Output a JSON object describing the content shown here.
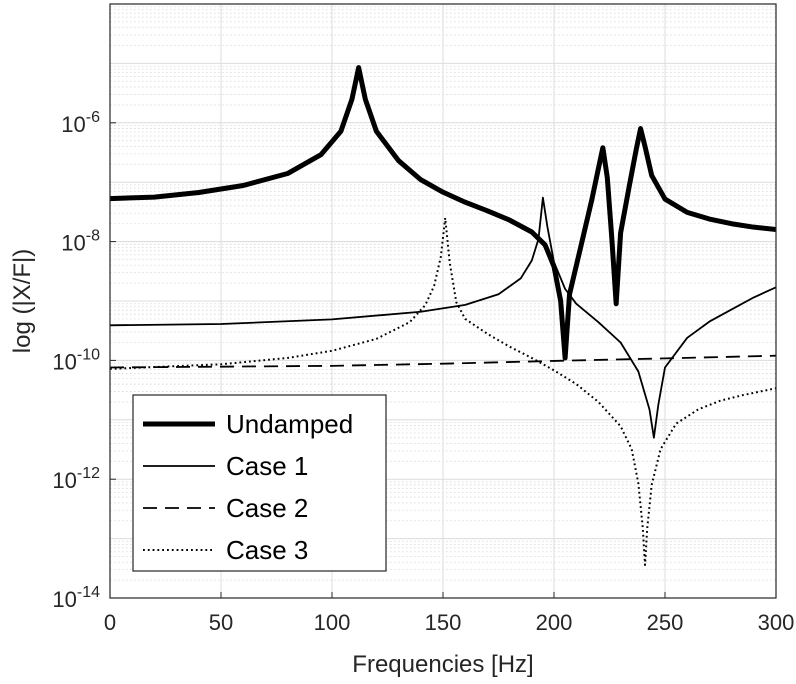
{
  "chart_data": {
    "type": "line",
    "title": "",
    "xlabel": "Frequencies [Hz]",
    "ylabel": "log (|X/F|)",
    "xlim": [
      0,
      300
    ],
    "ylim": [
      1e-14,
      0.0001
    ],
    "yscale": "log",
    "grid": true,
    "minor_grid": true,
    "legend_position": "bottom-left",
    "x_ticks": [
      0,
      50,
      100,
      150,
      200,
      250,
      300
    ],
    "y_ticks": [
      {
        "base": "10",
        "exp": "-14"
      },
      {
        "base": "10",
        "exp": "-12"
      },
      {
        "base": "10",
        "exp": "-10"
      },
      {
        "base": "10",
        "exp": "-8"
      },
      {
        "base": "10",
        "exp": "-6"
      }
    ],
    "series": [
      {
        "name": "Undamped",
        "style": "solid-thick",
        "points": [
          [
            0,
            5.3e-08
          ],
          [
            20,
            5.6e-08
          ],
          [
            40,
            6.7e-08
          ],
          [
            60,
            8.8e-08
          ],
          [
            80,
            1.4e-07
          ],
          [
            95,
            2.9e-07
          ],
          [
            104,
            7.2e-07
          ],
          [
            109,
            2.5e-06
          ],
          [
            112,
            8.5e-06
          ],
          [
            115,
            2.5e-06
          ],
          [
            120,
            7.2e-07
          ],
          [
            130,
            2.3e-07
          ],
          [
            140,
            1.1e-07
          ],
          [
            150,
            6.8e-08
          ],
          [
            160,
            4.6e-08
          ],
          [
            170,
            3.3e-08
          ],
          [
            180,
            2.3e-08
          ],
          [
            190,
            1.45e-08
          ],
          [
            196,
            8.8e-09
          ],
          [
            200,
            3.8e-09
          ],
          [
            203,
            1e-09
          ],
          [
            205,
            1.1e-10
          ],
          [
            207,
            1.3e-09
          ],
          [
            212,
            8e-09
          ],
          [
            217,
            5e-08
          ],
          [
            220,
            1.7e-07
          ],
          [
            222,
            3.8e-07
          ],
          [
            224,
            1.2e-07
          ],
          [
            226,
            1.2e-08
          ],
          [
            228,
            9e-10
          ],
          [
            230,
            1.4e-08
          ],
          [
            234,
            9e-08
          ],
          [
            237,
            3.5e-07
          ],
          [
            239,
            8e-07
          ],
          [
            241,
            4e-07
          ],
          [
            244,
            1.3e-07
          ],
          [
            250,
            5.2e-08
          ],
          [
            260,
            3.1e-08
          ],
          [
            270,
            2.4e-08
          ],
          [
            280,
            2e-08
          ],
          [
            290,
            1.75e-08
          ],
          [
            300,
            1.6e-08
          ]
        ]
      },
      {
        "name": "Case 1",
        "style": "solid-thin",
        "points": [
          [
            0,
            3.9e-10
          ],
          [
            50,
            4.1e-10
          ],
          [
            100,
            4.9e-10
          ],
          [
            140,
            6.6e-10
          ],
          [
            160,
            8.6e-10
          ],
          [
            175,
            1.3e-09
          ],
          [
            185,
            2.4e-09
          ],
          [
            190,
            4.8e-09
          ],
          [
            193,
            1.1e-08
          ],
          [
            195,
            5.5e-08
          ],
          [
            197,
            1.8e-08
          ],
          [
            200,
            4.5e-09
          ],
          [
            205,
            1.6e-09
          ],
          [
            210,
            9e-10
          ],
          [
            220,
            4.4e-10
          ],
          [
            230,
            2e-10
          ],
          [
            238,
            6.5e-11
          ],
          [
            243,
            1.5e-11
          ],
          [
            245,
            5e-12
          ],
          [
            247,
            1.8e-11
          ],
          [
            250,
            7.6e-11
          ],
          [
            260,
            2.4e-10
          ],
          [
            270,
            4.5e-10
          ],
          [
            280,
            7.2e-10
          ],
          [
            290,
            1.15e-09
          ],
          [
            300,
            1.7e-09
          ]
        ]
      },
      {
        "name": "Case 2",
        "style": "dashed",
        "points": [
          [
            0,
            7.6e-11
          ],
          [
            100,
            8.1e-11
          ],
          [
            150,
            8.8e-11
          ],
          [
            200,
            9.8e-11
          ],
          [
            250,
            1.08e-10
          ],
          [
            300,
            1.2e-10
          ]
        ]
      },
      {
        "name": "Case 3",
        "style": "dotted",
        "points": [
          [
            0,
            7.2e-11
          ],
          [
            50,
            8.6e-11
          ],
          [
            80,
            1.1e-10
          ],
          [
            100,
            1.45e-10
          ],
          [
            120,
            2.3e-10
          ],
          [
            135,
            4.4e-10
          ],
          [
            142,
            8.5e-10
          ],
          [
            146,
            1.8e-09
          ],
          [
            149,
            5.5e-09
          ],
          [
            151,
            2.5e-08
          ],
          [
            153,
            4.5e-09
          ],
          [
            156,
            9.5e-10
          ],
          [
            160,
            5e-10
          ],
          [
            170,
            2.8e-10
          ],
          [
            180,
            1.7e-10
          ],
          [
            190,
            1.1e-10
          ],
          [
            200,
            6.8e-11
          ],
          [
            210,
            4e-11
          ],
          [
            220,
            2e-11
          ],
          [
            230,
            7.8e-12
          ],
          [
            235,
            3.2e-12
          ],
          [
            238,
            8.5e-13
          ],
          [
            240,
            1.5e-13
          ],
          [
            241,
            3.6e-14
          ],
          [
            242,
            1.5e-13
          ],
          [
            244,
            8e-13
          ],
          [
            248,
            3.2e-12
          ],
          [
            255,
            8.6e-12
          ],
          [
            265,
            1.5e-11
          ],
          [
            275,
            2.1e-11
          ],
          [
            285,
            2.6e-11
          ],
          [
            300,
            3.4e-11
          ]
        ]
      }
    ]
  }
}
